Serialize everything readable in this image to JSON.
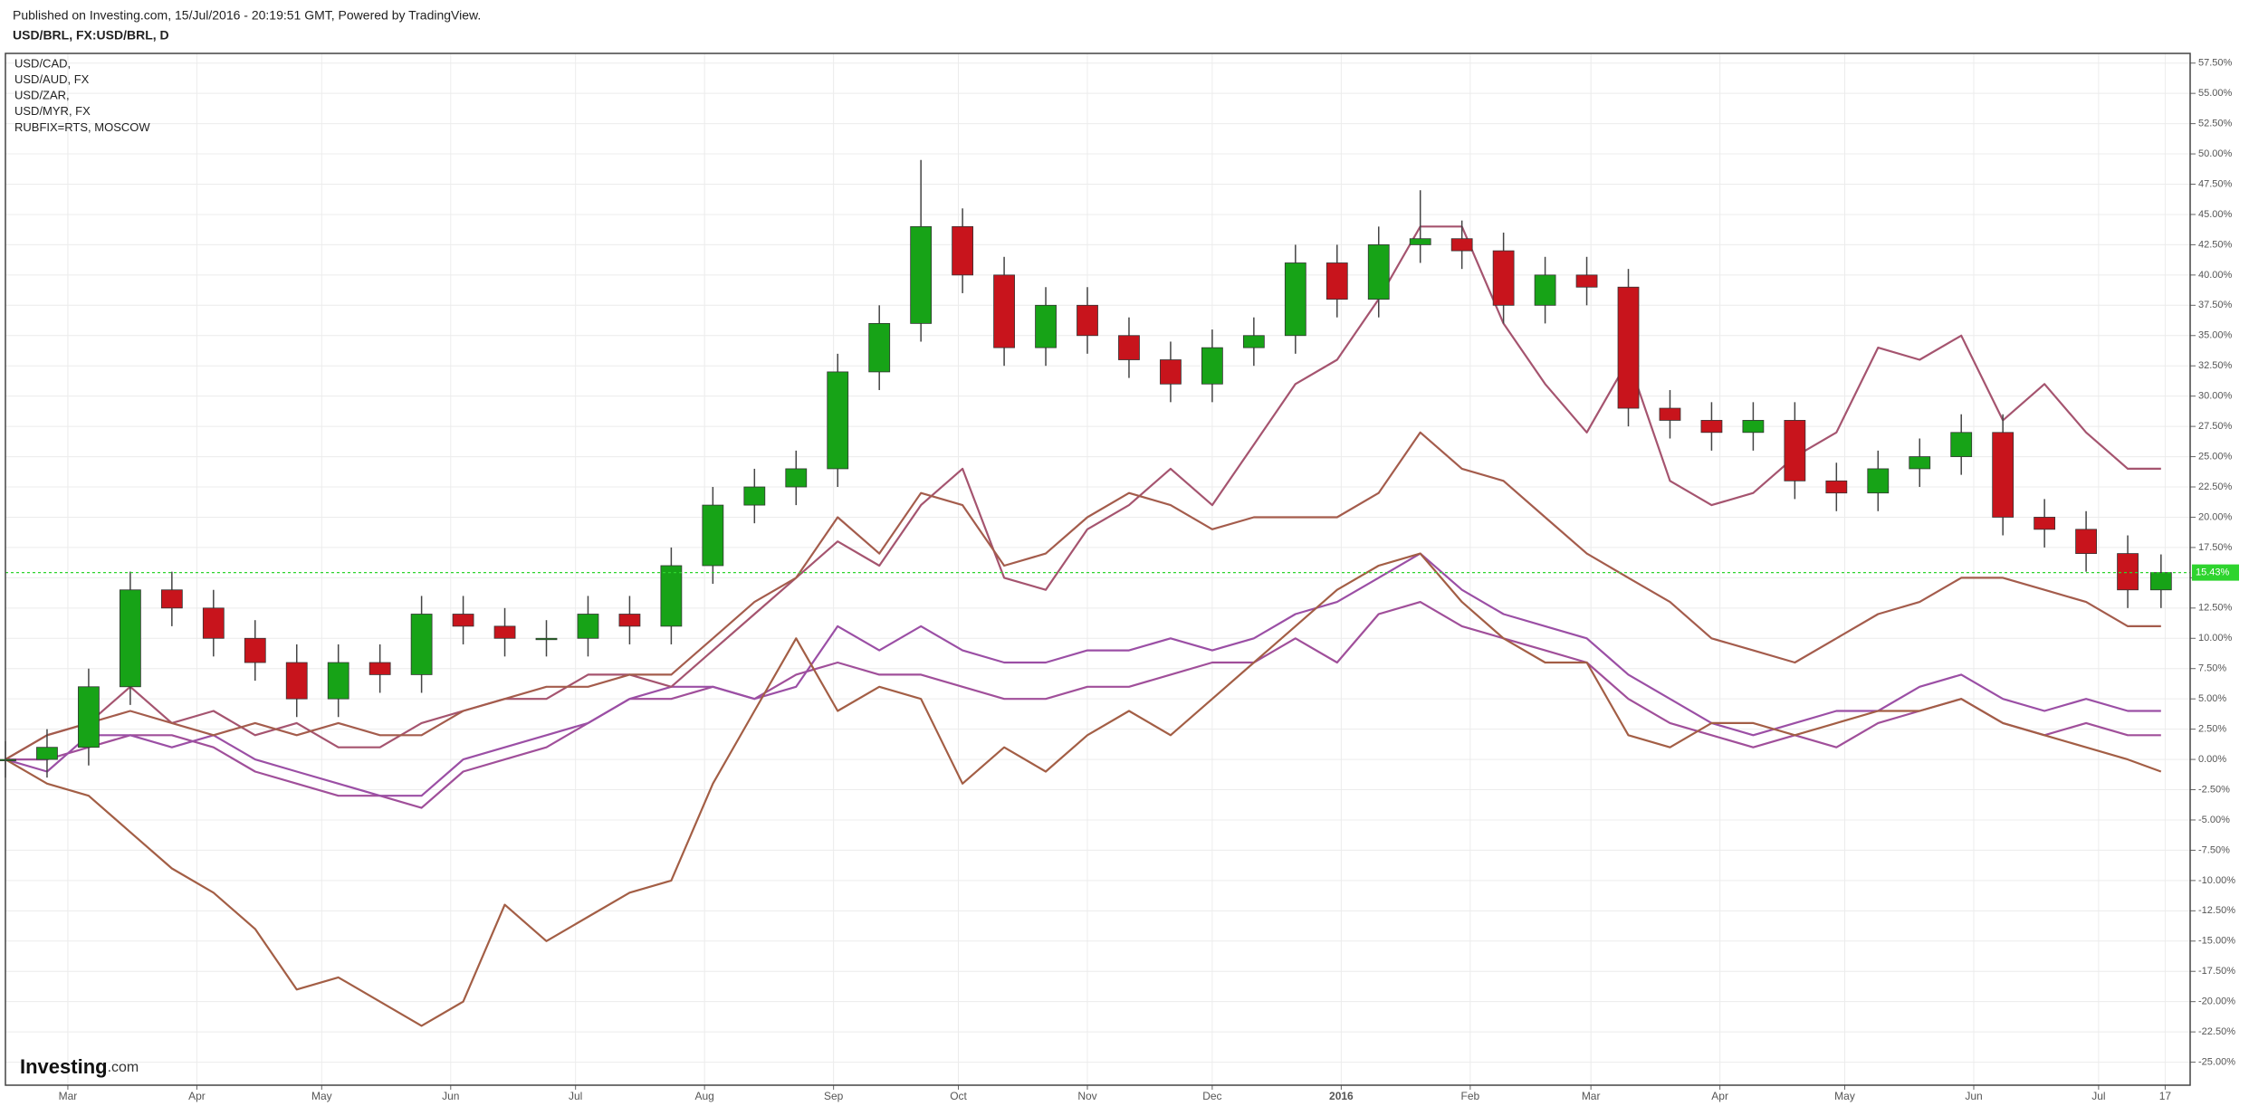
{
  "header": "Published on Investing.com, 15/Jul/2016 - 20:19:51 GMT, Powered by TradingView.",
  "logo_main": "Investing",
  "logo_suffix": ".com",
  "chart_data": {
    "type": "candlestick",
    "title": "USD/BRL, FX:USD/BRL, D",
    "up_color": "#17a317",
    "down_color": "#c8141c",
    "last_label": "15.43%",
    "last_color": "#2ed42e",
    "grid": true,
    "xlim": [
      0,
      525
    ],
    "xticks": [
      {
        "value": 15,
        "label": "Mar"
      },
      {
        "value": 46,
        "label": "Apr"
      },
      {
        "value": 76,
        "label": "May"
      },
      {
        "value": 107,
        "label": "Jun"
      },
      {
        "value": 137,
        "label": "Jul"
      },
      {
        "value": 168,
        "label": "Aug"
      },
      {
        "value": 199,
        "label": "Sep"
      },
      {
        "value": 229,
        "label": "Oct"
      },
      {
        "value": 260,
        "label": "Nov"
      },
      {
        "value": 290,
        "label": "Dec"
      },
      {
        "value": 321,
        "label": "2016"
      },
      {
        "value": 352,
        "label": "Feb"
      },
      {
        "value": 381,
        "label": "Mar"
      },
      {
        "value": 412,
        "label": "Apr"
      },
      {
        "value": 442,
        "label": "May"
      },
      {
        "value": 473,
        "label": "Jun"
      },
      {
        "value": 503,
        "label": "Jul"
      },
      {
        "value": 519,
        "label": "17"
      }
    ],
    "ylim": [
      -26.9,
      58.3
    ],
    "yticks": [
      {
        "value": 57.5,
        "label": "57.50%"
      },
      {
        "value": 55,
        "label": "55.00%"
      },
      {
        "value": 52.5,
        "label": "52.50%"
      },
      {
        "value": 50,
        "label": "50.00%"
      },
      {
        "value": 47.5,
        "label": "47.50%"
      },
      {
        "value": 45,
        "label": "45.00%"
      },
      {
        "value": 42.5,
        "label": "42.50%"
      },
      {
        "value": 40,
        "label": "40.00%"
      },
      {
        "value": 37.5,
        "label": "37.50%"
      },
      {
        "value": 35,
        "label": "35.00%"
      },
      {
        "value": 32.5,
        "label": "32.50%"
      },
      {
        "value": 30,
        "label": "30.00%"
      },
      {
        "value": 27.5,
        "label": "27.50%"
      },
      {
        "value": 25,
        "label": "25.00%"
      },
      {
        "value": 22.5,
        "label": "22.50%"
      },
      {
        "value": 20,
        "label": "20.00%"
      },
      {
        "value": 17.5,
        "label": "17.50%"
      },
      {
        "value": 15,
        "label": "15.00%"
      },
      {
        "value": 12.5,
        "label": "12.50%"
      },
      {
        "value": 10,
        "label": "10.00%"
      },
      {
        "value": 7.5,
        "label": "7.50%"
      },
      {
        "value": 5,
        "label": "5.00%"
      },
      {
        "value": 2.5,
        "label": "2.50%"
      },
      {
        "value": 0,
        "label": "0.00%"
      },
      {
        "value": -2.5,
        "label": "-2.50%"
      },
      {
        "value": -5,
        "label": "-5.00%"
      },
      {
        "value": -7.5,
        "label": "-7.50%"
      },
      {
        "value": -10,
        "label": "-10.00%"
      },
      {
        "value": -12.5,
        "label": "-12.50%"
      },
      {
        "value": -15,
        "label": "-15.00%"
      },
      {
        "value": -17.5,
        "label": "-17.50%"
      },
      {
        "value": -20,
        "label": "-20.00%"
      },
      {
        "value": -22.5,
        "label": "-22.50%"
      },
      {
        "value": -25,
        "label": "-25.00%"
      }
    ],
    "x": [
      0,
      10,
      20,
      30,
      40,
      50,
      60,
      70,
      80,
      90,
      100,
      110,
      120,
      130,
      140,
      150,
      160,
      170,
      180,
      190,
      200,
      210,
      220,
      230,
      240,
      250,
      260,
      270,
      280,
      290,
      300,
      310,
      320,
      330,
      340,
      350,
      360,
      370,
      380,
      390,
      400,
      410,
      420,
      430,
      440,
      450,
      460,
      470,
      480,
      490,
      500,
      510,
      518
    ],
    "open": [
      0,
      0,
      1,
      6,
      14,
      12.5,
      10,
      8,
      5,
      8,
      7,
      12,
      11,
      10,
      10,
      12,
      11,
      16,
      21,
      22.5,
      24,
      32,
      36,
      44,
      40,
      34,
      37.5,
      35,
      33,
      31,
      34,
      35,
      41,
      38,
      42.5,
      43,
      42,
      37.5,
      40,
      39,
      29,
      28,
      27,
      28,
      23,
      22,
      24,
      25,
      27,
      20,
      19,
      17,
      14
    ],
    "high": [
      1.5,
      2.5,
      7.5,
      15.5,
      15.5,
      14,
      11.5,
      9.5,
      9.5,
      9.5,
      13.5,
      13.5,
      12.5,
      11.5,
      13.5,
      13.5,
      17.5,
      22.5,
      24,
      25.5,
      33.5,
      37.5,
      49.5,
      45.5,
      41.5,
      39,
      39,
      36.5,
      34.5,
      35.5,
      36.5,
      42.5,
      42.5,
      44,
      47,
      44.5,
      43.5,
      41.5,
      41.5,
      40.5,
      30.5,
      29.5,
      29.5,
      29.5,
      24.5,
      25.5,
      26.5,
      28.5,
      28.5,
      21.5,
      20.5,
      18.5,
      16.93
    ],
    "low": [
      -1.5,
      -1.5,
      -0.5,
      4.5,
      11,
      8.5,
      6.5,
      3.5,
      3.5,
      5.5,
      5.5,
      9.5,
      8.5,
      8.5,
      8.5,
      9.5,
      9.5,
      14.5,
      19.5,
      21,
      22.5,
      30.5,
      34.5,
      38.5,
      32.5,
      32.5,
      33.5,
      31.5,
      29.5,
      29.5,
      32.5,
      33.5,
      36.5,
      36.5,
      41,
      40.5,
      36,
      36,
      37.5,
      27.5,
      26.5,
      25.5,
      25.5,
      21.5,
      20.5,
      20.5,
      22.5,
      23.5,
      18.5,
      17.5,
      15.5,
      12.5,
      12.5
    ],
    "close": [
      0,
      1,
      6,
      14,
      12.5,
      10,
      8,
      5,
      8,
      7,
      12,
      11,
      10,
      10,
      12,
      11,
      16,
      21,
      22.5,
      24,
      32,
      36,
      44,
      40,
      34,
      37.5,
      35,
      33,
      31,
      34,
      35,
      41,
      38,
      42.5,
      43,
      42,
      37.5,
      40,
      39,
      29,
      28,
      27,
      28,
      23,
      22,
      24,
      25,
      27,
      20,
      19,
      17,
      14,
      15.43
    ],
    "series": [
      {
        "name": "USD/CAD,",
        "color": "#a04f9a",
        "values": [
          0,
          0,
          1,
          2,
          2,
          1,
          -1,
          -2,
          -3,
          -3,
          -4,
          -1,
          0,
          1,
          3,
          5,
          5,
          6,
          5,
          7,
          8,
          7,
          7,
          6,
          5,
          5,
          6,
          6,
          7,
          8,
          8,
          10,
          8,
          12,
          13,
          11,
          10,
          9,
          8,
          5,
          3,
          2,
          1,
          2,
          1,
          3,
          4,
          5,
          3,
          2,
          3,
          2,
          2
        ]
      },
      {
        "name": "USD/AUD, FX",
        "color": "#9b4fa5",
        "values": [
          0,
          -1,
          2,
          2,
          1,
          2,
          0,
          -1,
          -2,
          -3,
          -3,
          0,
          1,
          2,
          3,
          5,
          6,
          6,
          5,
          6,
          11,
          9,
          11,
          9,
          8,
          8,
          9,
          9,
          10,
          9,
          10,
          12,
          13,
          15,
          17,
          14,
          12,
          11,
          10,
          7,
          5,
          3,
          2,
          3,
          4,
          4,
          6,
          7,
          5,
          4,
          5,
          4,
          4
        ]
      },
      {
        "name": "USD/ZAR,",
        "color": "#a5546f",
        "values": [
          0,
          2,
          3,
          6,
          3,
          4,
          2,
          3,
          1,
          1,
          3,
          4,
          5,
          5,
          7,
          7,
          6,
          9,
          12,
          15,
          18,
          16,
          21,
          24,
          15,
          14,
          19,
          21,
          24,
          21,
          26,
          31,
          33,
          38,
          44,
          44,
          36,
          31,
          27,
          33,
          23,
          21,
          22,
          25,
          27,
          34,
          33,
          35,
          28,
          31,
          27,
          24,
          24
        ]
      },
      {
        "name": "USD/MYR, FX",
        "color": "#a45c4c",
        "values": [
          0,
          2,
          3,
          4,
          3,
          2,
          3,
          2,
          3,
          2,
          2,
          4,
          5,
          6,
          6,
          7,
          7,
          10,
          13,
          15,
          20,
          17,
          22,
          21,
          16,
          17,
          20,
          22,
          21,
          19,
          20,
          20,
          20,
          22,
          27,
          24,
          23,
          20,
          17,
          15,
          13,
          10,
          9,
          8,
          10,
          12,
          13,
          15,
          15,
          14,
          13,
          11,
          11
        ]
      },
      {
        "name": "RUBFIX=RTS, MOSCOW",
        "color": "#a35e45",
        "values": [
          0,
          -2,
          -3,
          -6,
          -9,
          -11,
          -14,
          -19,
          -18,
          -20,
          -22,
          -20,
          -12,
          -15,
          -13,
          -11,
          -10,
          -2,
          4,
          10,
          4,
          6,
          5,
          -2,
          1,
          -1,
          2,
          4,
          2,
          5,
          8,
          11,
          14,
          16,
          17,
          13,
          10,
          8,
          8,
          2,
          1,
          3,
          3,
          2,
          3,
          4,
          4,
          5,
          3,
          2,
          1,
          0,
          -1
        ]
      }
    ]
  }
}
